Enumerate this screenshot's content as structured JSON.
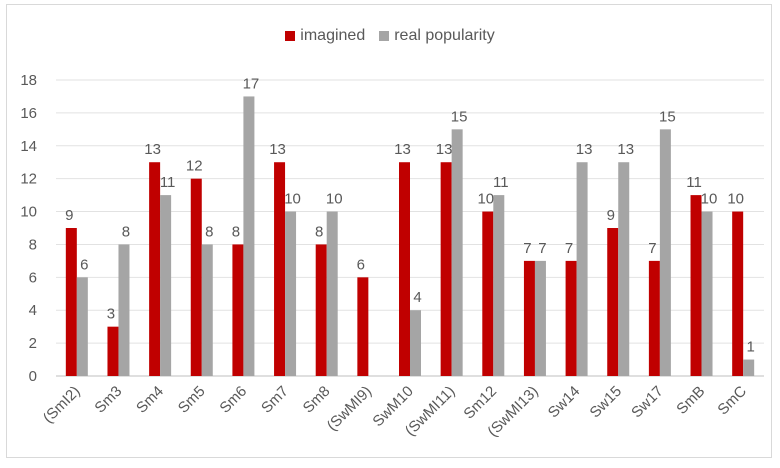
{
  "chart_data": {
    "type": "bar",
    "categories": [
      "(SmI2)",
      "Sm3",
      "Sm4",
      "Sm5",
      "Sm6",
      "Sm7",
      "Sm8",
      "(SwMI9)",
      "SwM10",
      "(SwMI11)",
      "Sm12",
      "(SwMI13)",
      "Sw14",
      "Sw15",
      "Sw17",
      "SmB",
      "SmC"
    ],
    "series": [
      {
        "name": "imagined",
        "color": "#c00000",
        "values": [
          9,
          3,
          13,
          12,
          8,
          13,
          8,
          6,
          13,
          13,
          10,
          7,
          7,
          9,
          7,
          11,
          10
        ]
      },
      {
        "name": "real popularity",
        "color": "#a5a5a5",
        "values": [
          6,
          8,
          11,
          8,
          17,
          10,
          10,
          0,
          4,
          15,
          11,
          7,
          13,
          13,
          15,
          10,
          1
        ]
      }
    ],
    "data_labels": [
      [
        "9",
        "3",
        "13",
        "12",
        "8",
        "13",
        "8",
        "6",
        "13",
        "13",
        "10",
        "7",
        "7",
        "9",
        "7",
        "11",
        "10"
      ],
      [
        "6",
        "8",
        "11",
        "8",
        "17",
        "10",
        "10",
        "",
        "4",
        "15",
        "11",
        "7",
        "13",
        "13",
        "15",
        "10",
        "1"
      ]
    ],
    "y_ticks": [
      "0",
      "2",
      "4",
      "6",
      "8",
      "10",
      "12",
      "14",
      "16",
      "18"
    ],
    "ylim": [
      0,
      18
    ],
    "grid": true,
    "legend_position": "top-center",
    "title": "",
    "xlabel": "",
    "ylabel": ""
  }
}
